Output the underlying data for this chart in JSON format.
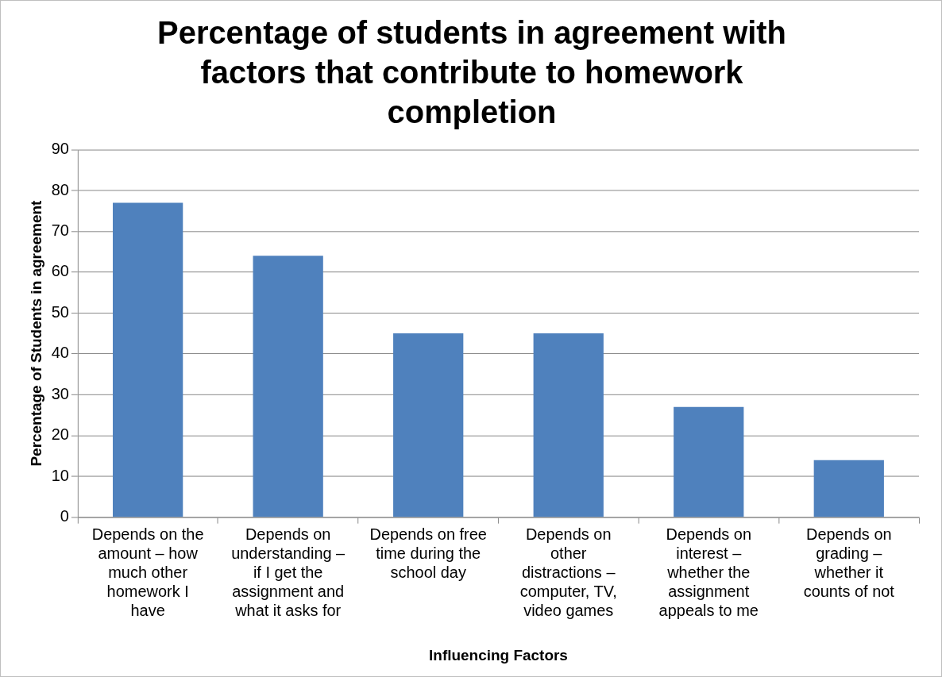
{
  "chart_data": {
    "type": "bar",
    "title": "Percentage of students in agreement with factors that contribute to homework completion",
    "xlabel": "Influencing Factors",
    "ylabel": "Percentage of Students in agreement",
    "categories": [
      "Depends on the amount – how much other homework I have",
      "Depends on understanding – if I get the assignment and what it asks for",
      "Depends on free time during the school day",
      "Depends on other distractions – computer, TV, video games",
      "Depends on interest – whether the assignment appeals to me",
      "Depends on grading – whether it counts of not"
    ],
    "values": [
      77,
      64,
      45,
      45,
      27,
      14
    ],
    "color": "#4f81bd",
    "ylim": [
      0,
      90
    ],
    "yticks": [
      0,
      10,
      20,
      30,
      40,
      50,
      60,
      70,
      80,
      90
    ],
    "grid": "y",
    "legend": false
  }
}
